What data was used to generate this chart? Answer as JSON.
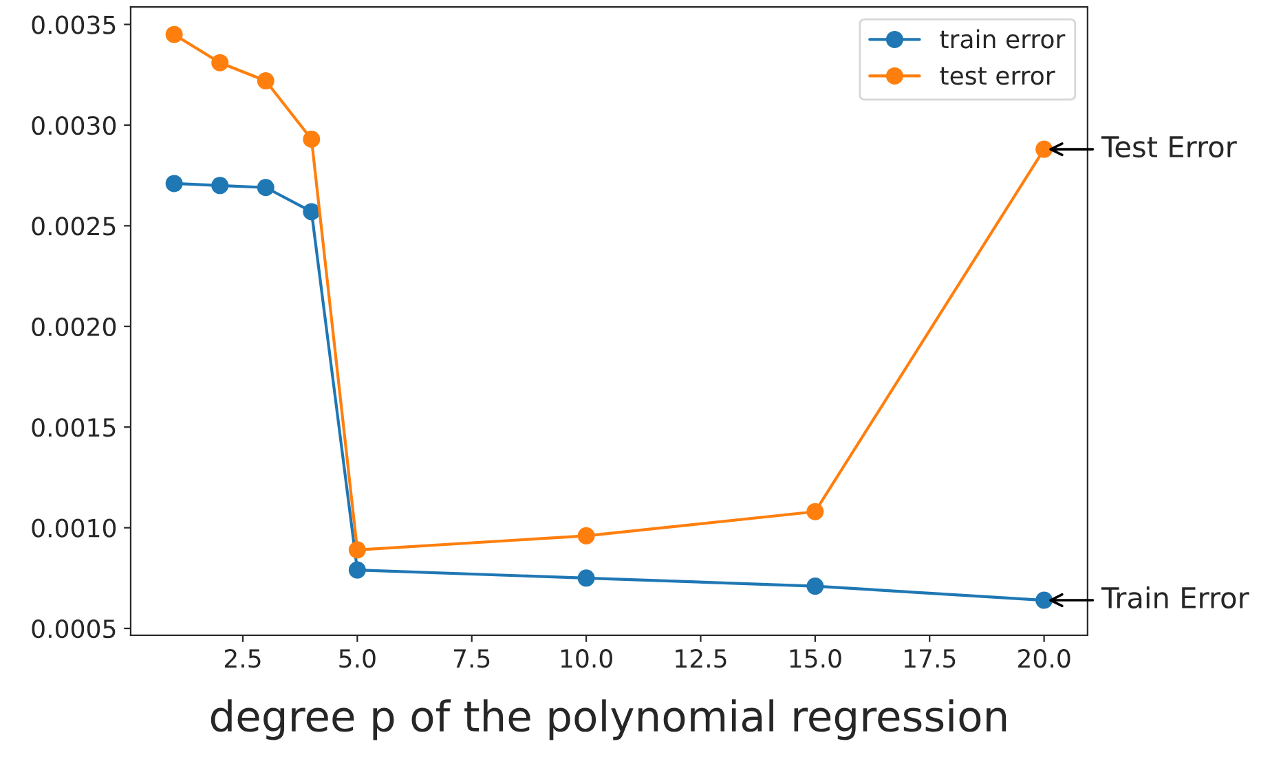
{
  "chart_data": {
    "type": "line",
    "xlabel": "degree p of the polynomial regression",
    "x": [
      1,
      2,
      3,
      4,
      5,
      10,
      15,
      20
    ],
    "series": [
      {
        "name": "train error",
        "color": "#1f77b4",
        "values": [
          0.00271,
          0.0027,
          0.00269,
          0.00257,
          0.00079,
          0.00075,
          0.00071,
          0.00064
        ]
      },
      {
        "name": "test error",
        "color": "#ff7f0e",
        "values": [
          0.00345,
          0.00331,
          0.00322,
          0.00293,
          0.00089,
          0.00096,
          0.00108,
          0.00288
        ]
      }
    ],
    "annotations": [
      {
        "text": "Test Error",
        "x": 20,
        "y": 0.00288
      },
      {
        "text": "Train Error",
        "x": 20,
        "y": 0.00064
      }
    ],
    "xlim": [
      0.05,
      20.95
    ],
    "ylim": [
      0.000466,
      0.003587
    ],
    "xticks": [
      {
        "value": 2.5,
        "label": "2.5"
      },
      {
        "value": 5,
        "label": "5.0"
      },
      {
        "value": 7.5,
        "label": "7.5"
      },
      {
        "value": 10,
        "label": "10.0"
      },
      {
        "value": 12.5,
        "label": "12.5"
      },
      {
        "value": 15,
        "label": "15.0"
      },
      {
        "value": 17.5,
        "label": "17.5"
      },
      {
        "value": 20,
        "label": "20.0"
      }
    ],
    "yticks": [
      {
        "value": 0.0005,
        "label": "0.0005"
      },
      {
        "value": 0.001,
        "label": "0.0010"
      },
      {
        "value": 0.0015,
        "label": "0.0015"
      },
      {
        "value": 0.002,
        "label": "0.0020"
      },
      {
        "value": 0.0025,
        "label": "0.0025"
      },
      {
        "value": 0.003,
        "label": "0.0030"
      },
      {
        "value": 0.0035,
        "label": "0.0035"
      }
    ],
    "marker": "circle",
    "line_style": "solid",
    "legend": "top right",
    "grid": false
  }
}
